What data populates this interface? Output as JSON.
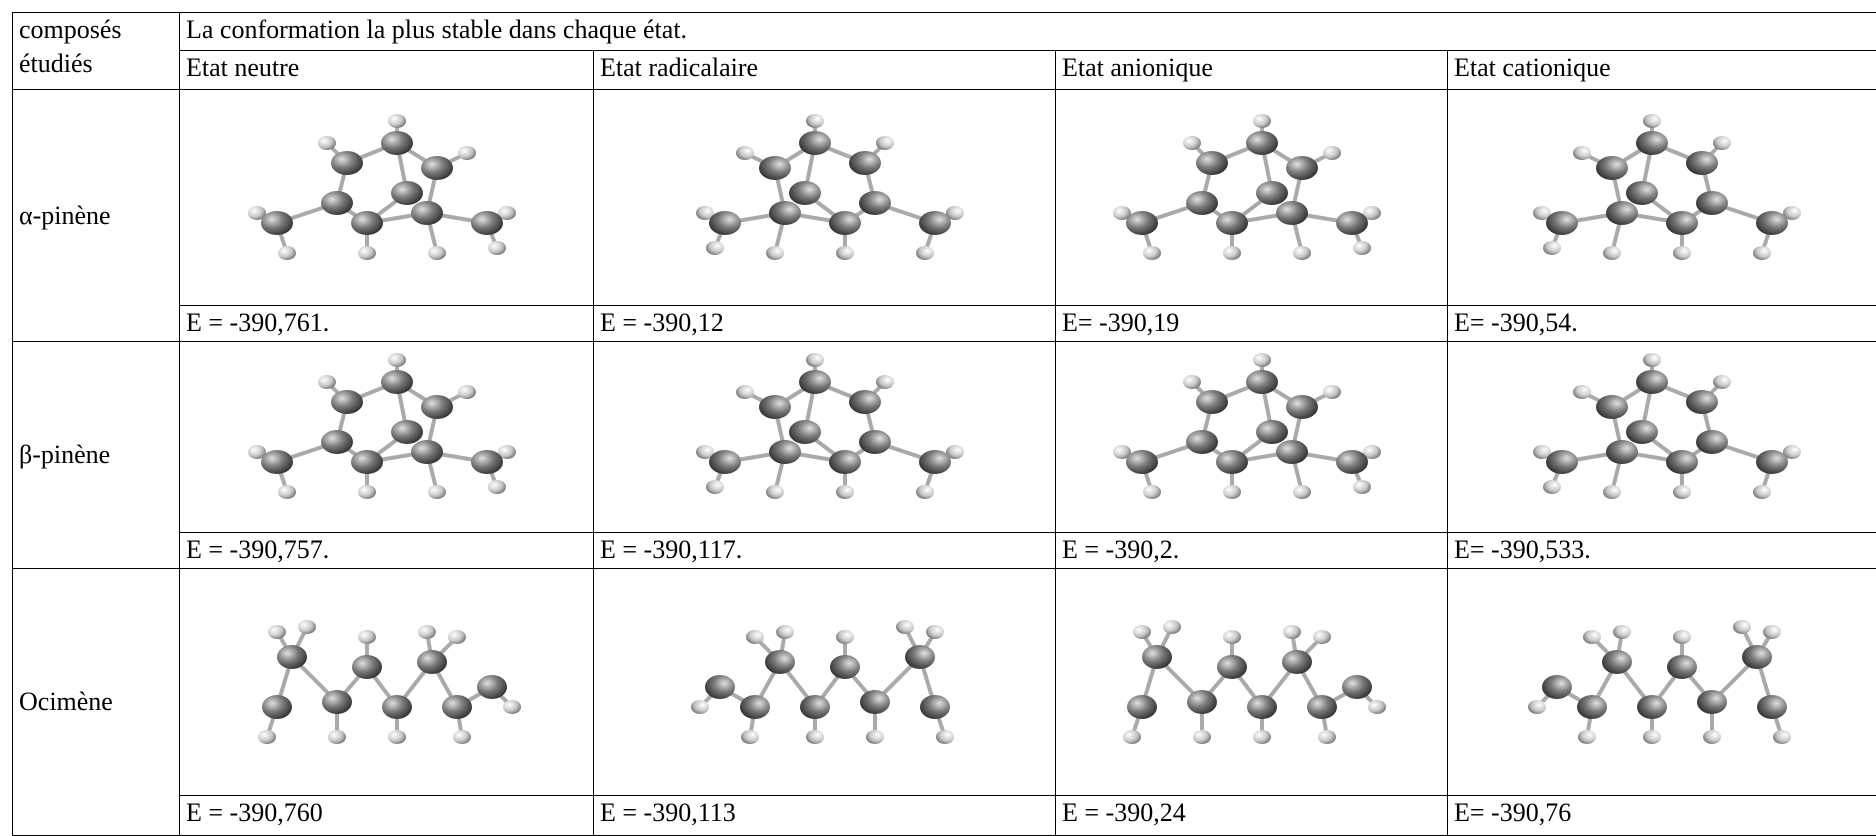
{
  "header": {
    "label_lines": [
      "composés",
      "étudiés"
    ],
    "title": "La conformation la plus stable dans chaque état.",
    "states": [
      "Etat neutre",
      "Etat radicalaire",
      "Etat anionique",
      "Etat cationique"
    ]
  },
  "rows": [
    {
      "name": "α-pinène",
      "energies": [
        "E = -390,761.",
        "E = -390,12",
        "E= -390,19",
        "E= -390,54."
      ]
    },
    {
      "name": "β-pinène",
      "energies": [
        "E = -390,757.",
        "E = -390,117.",
        "E = -390,2.",
        "E= -390,533."
      ]
    },
    {
      "name": "Ocimène",
      "energies": [
        "E = -390,760",
        "E = -390,113",
        "E = -390,24",
        "E= -390,76"
      ]
    }
  ]
}
